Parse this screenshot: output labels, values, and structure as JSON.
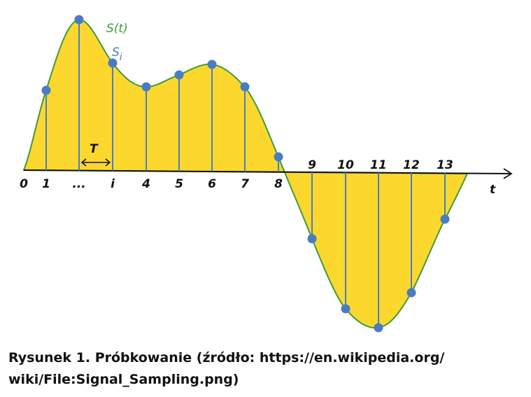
{
  "diagram": {
    "signal_label": "S(t)",
    "sample_label_base": "S",
    "sample_label_sub": "i",
    "period_label": "T",
    "axis_label": "t",
    "tick_labels": [
      "0",
      "1",
      "...",
      "i",
      "4",
      "5",
      "6",
      "7",
      "8",
      "9",
      "10",
      "11",
      "12",
      "13"
    ],
    "colors": {
      "fill": "#FCD82E",
      "curve": "#3E9B3A",
      "samples": "#4A7CC4",
      "axis": "#111111",
      "signal_label": "#3E9B3A",
      "sample_label": "#4A7CC4"
    }
  },
  "caption": {
    "line1": "Rysunek 1. Próbkowanie (źródło: https://en.wikipedia.org/",
    "line2": "wiki/File:Signal_Sampling.png)"
  }
}
